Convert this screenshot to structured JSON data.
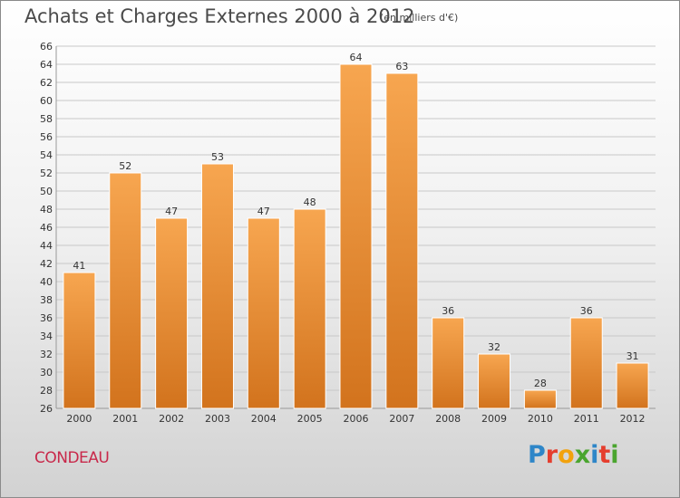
{
  "header": {
    "title": "Achats et Charges Externes 2000 à 2012",
    "subtitle": "(en milliers d'€)"
  },
  "footer": {
    "commune": "CONDEAU",
    "brand": [
      "P",
      "r",
      "o",
      "x",
      "i",
      "t",
      "i"
    ],
    "brand_colors": [
      "#2e86c8",
      "#e53e2e",
      "#f2a20d",
      "#4aa52e",
      "#2e86c8",
      "#e53e2e",
      "#4aa52e"
    ]
  },
  "colors": {
    "bar_top": "#f7a650",
    "bar_bottom": "#d2731d",
    "grid": "#c8c8c8",
    "text": "#333333"
  },
  "chart_data": {
    "type": "bar",
    "title": "Achats et Charges Externes 2000 à 2012",
    "subtitle": "(en milliers d'€)",
    "categories": [
      "2000",
      "2001",
      "2002",
      "2003",
      "2004",
      "2005",
      "2006",
      "2007",
      "2008",
      "2009",
      "2010",
      "2011",
      "2012"
    ],
    "values": [
      41,
      52,
      47,
      53,
      47,
      48,
      64,
      63,
      36,
      32,
      28,
      36,
      31
    ],
    "ylim": [
      26,
      66
    ],
    "yticks": [
      26,
      28,
      30,
      32,
      34,
      36,
      38,
      40,
      42,
      44,
      46,
      48,
      50,
      52,
      54,
      56,
      58,
      60,
      62,
      64,
      66
    ],
    "grid": true,
    "data_labels": true
  }
}
